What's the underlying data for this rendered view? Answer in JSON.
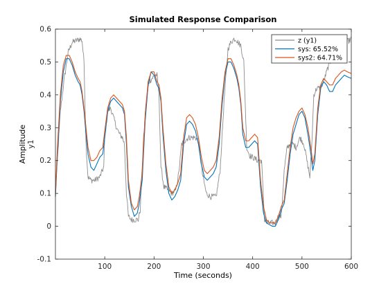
{
  "chart_data": {
    "type": "line",
    "title": "Simulated Response Comparison",
    "xlabel": "Time (seconds)",
    "ylabel": "Amplitude",
    "ylabel_sub": "y1",
    "xlim": [
      0,
      600
    ],
    "ylim": [
      -0.1,
      0.6
    ],
    "xticks": [
      100,
      200,
      300,
      400,
      500,
      600
    ],
    "yticks": [
      -0.1,
      0,
      0.1,
      0.2,
      0.3,
      0.4,
      0.5,
      0.6
    ],
    "grid": false,
    "legend_position": "top-right",
    "series": [
      {
        "name": "z (y1)",
        "color": "#8c8c8c",
        "noisy": true,
        "x": [
          0,
          4,
          10,
          18,
          26,
          34,
          42,
          50,
          54,
          58,
          62,
          66,
          72,
          80,
          90,
          98,
          100,
          106,
          112,
          118,
          124,
          130,
          136,
          140,
          144,
          148,
          154,
          162,
          168,
          172,
          178,
          184,
          190,
          196,
          202,
          206,
          210,
          214,
          220,
          228,
          236,
          244,
          250,
          256,
          262,
          270,
          278,
          284,
          290,
          298,
          306,
          314,
          320,
          326,
          334,
          342,
          350,
          356,
          362,
          366,
          370,
          376,
          382,
          388,
          394,
          400,
          410,
          418,
          424,
          430,
          438,
          446,
          452,
          458,
          464,
          470,
          476,
          482,
          488,
          496,
          504,
          510,
          516,
          520,
          524,
          530,
          536,
          544,
          552,
          560,
          568,
          578,
          588,
          596,
          600
        ],
        "y": [
          0.1,
          0.2,
          0.35,
          0.45,
          0.53,
          0.56,
          0.565,
          0.57,
          0.565,
          0.5,
          0.25,
          0.15,
          0.14,
          0.14,
          0.15,
          0.18,
          0.27,
          0.35,
          0.36,
          0.33,
          0.3,
          0.28,
          0.27,
          0.25,
          0.1,
          0.03,
          0.02,
          0.02,
          0.02,
          0.05,
          0.25,
          0.38,
          0.44,
          0.45,
          0.46,
          0.46,
          0.4,
          0.18,
          0.12,
          0.11,
          0.1,
          0.11,
          0.16,
          0.25,
          0.26,
          0.27,
          0.27,
          0.27,
          0.26,
          0.16,
          0.1,
          0.09,
          0.09,
          0.09,
          0.17,
          0.38,
          0.54,
          0.56,
          0.57,
          0.57,
          0.56,
          0.55,
          0.5,
          0.24,
          0.215,
          0.21,
          0.2,
          0.2,
          0.02,
          0.01,
          0.01,
          0.01,
          0.03,
          0.03,
          0.17,
          0.24,
          0.25,
          0.25,
          0.24,
          0.27,
          0.25,
          0.2,
          0.15,
          0.25,
          0.4,
          0.42,
          0.42,
          0.44,
          0.48,
          0.51,
          0.53,
          0.55,
          0.56,
          0.565,
          0.57
        ]
      },
      {
        "name": "sys: 65.52%",
        "color": "#0072bd",
        "noisy": false,
        "x": [
          0,
          4,
          10,
          16,
          22,
          28,
          34,
          40,
          46,
          50,
          54,
          58,
          62,
          66,
          72,
          78,
          84,
          90,
          96,
          100,
          106,
          112,
          118,
          124,
          130,
          136,
          140,
          144,
          148,
          154,
          160,
          166,
          170,
          176,
          182,
          188,
          194,
          200,
          206,
          210,
          214,
          218,
          224,
          230,
          236,
          242,
          248,
          254,
          260,
          266,
          272,
          278,
          284,
          290,
          296,
          302,
          308,
          314,
          320,
          326,
          332,
          338,
          344,
          350,
          356,
          362,
          368,
          372,
          376,
          380,
          386,
          392,
          398,
          404,
          410,
          416,
          422,
          428,
          434,
          440,
          446,
          452,
          458,
          464,
          470,
          476,
          482,
          488,
          494,
          500,
          506,
          512,
          518,
          522,
          526,
          532,
          538,
          544,
          550,
          556,
          562,
          568,
          574,
          580,
          586,
          592,
          600
        ],
        "y": [
          0.09,
          0.22,
          0.38,
          0.47,
          0.51,
          0.51,
          0.49,
          0.46,
          0.44,
          0.43,
          0.4,
          0.35,
          0.28,
          0.22,
          0.18,
          0.17,
          0.19,
          0.21,
          0.22,
          0.27,
          0.35,
          0.38,
          0.39,
          0.38,
          0.37,
          0.36,
          0.34,
          0.25,
          0.12,
          0.06,
          0.03,
          0.04,
          0.07,
          0.14,
          0.32,
          0.43,
          0.47,
          0.46,
          0.43,
          0.42,
          0.38,
          0.28,
          0.17,
          0.1,
          0.08,
          0.09,
          0.11,
          0.14,
          0.25,
          0.31,
          0.32,
          0.31,
          0.29,
          0.25,
          0.19,
          0.15,
          0.14,
          0.15,
          0.16,
          0.18,
          0.25,
          0.37,
          0.46,
          0.5,
          0.5,
          0.48,
          0.45,
          0.42,
          0.37,
          0.28,
          0.24,
          0.24,
          0.25,
          0.26,
          0.25,
          0.12,
          0.04,
          0.01,
          0.005,
          0.0,
          0.0,
          0.02,
          0.05,
          0.07,
          0.14,
          0.22,
          0.28,
          0.31,
          0.34,
          0.35,
          0.33,
          0.28,
          0.22,
          0.17,
          0.2,
          0.34,
          0.42,
          0.44,
          0.43,
          0.41,
          0.41,
          0.43,
          0.44,
          0.45,
          0.46,
          0.455,
          0.45
        ]
      },
      {
        "name": "sys2: 64.71%",
        "color": "#d95319",
        "noisy": false,
        "x": [
          0,
          4,
          10,
          16,
          22,
          28,
          34,
          40,
          46,
          50,
          54,
          58,
          62,
          66,
          72,
          78,
          84,
          90,
          96,
          100,
          106,
          112,
          118,
          124,
          130,
          136,
          140,
          144,
          148,
          154,
          160,
          166,
          170,
          176,
          182,
          188,
          194,
          200,
          206,
          210,
          214,
          218,
          224,
          230,
          236,
          242,
          248,
          254,
          260,
          266,
          272,
          278,
          284,
          290,
          296,
          302,
          308,
          314,
          320,
          326,
          332,
          338,
          344,
          350,
          356,
          362,
          368,
          372,
          376,
          380,
          386,
          392,
          398,
          404,
          410,
          416,
          422,
          428,
          434,
          440,
          446,
          452,
          458,
          464,
          470,
          476,
          482,
          488,
          494,
          500,
          506,
          512,
          518,
          522,
          526,
          532,
          538,
          544,
          550,
          556,
          562,
          568,
          574,
          580,
          586,
          592,
          600
        ],
        "y": [
          0.1,
          0.24,
          0.4,
          0.49,
          0.52,
          0.52,
          0.5,
          0.47,
          0.45,
          0.44,
          0.41,
          0.36,
          0.3,
          0.24,
          0.2,
          0.2,
          0.21,
          0.23,
          0.24,
          0.29,
          0.36,
          0.39,
          0.4,
          0.39,
          0.38,
          0.37,
          0.35,
          0.27,
          0.14,
          0.07,
          0.05,
          0.06,
          0.09,
          0.16,
          0.34,
          0.44,
          0.47,
          0.47,
          0.44,
          0.43,
          0.39,
          0.3,
          0.19,
          0.12,
          0.1,
          0.11,
          0.13,
          0.16,
          0.27,
          0.33,
          0.34,
          0.33,
          0.31,
          0.27,
          0.21,
          0.17,
          0.16,
          0.17,
          0.18,
          0.2,
          0.27,
          0.39,
          0.47,
          0.51,
          0.51,
          0.49,
          0.46,
          0.43,
          0.38,
          0.3,
          0.26,
          0.26,
          0.27,
          0.28,
          0.27,
          0.14,
          0.06,
          0.02,
          0.01,
          0.01,
          0.01,
          0.03,
          0.06,
          0.08,
          0.16,
          0.24,
          0.3,
          0.33,
          0.35,
          0.36,
          0.34,
          0.3,
          0.24,
          0.19,
          0.22,
          0.36,
          0.43,
          0.45,
          0.44,
          0.43,
          0.43,
          0.45,
          0.46,
          0.47,
          0.475,
          0.47,
          0.465
        ]
      }
    ]
  }
}
